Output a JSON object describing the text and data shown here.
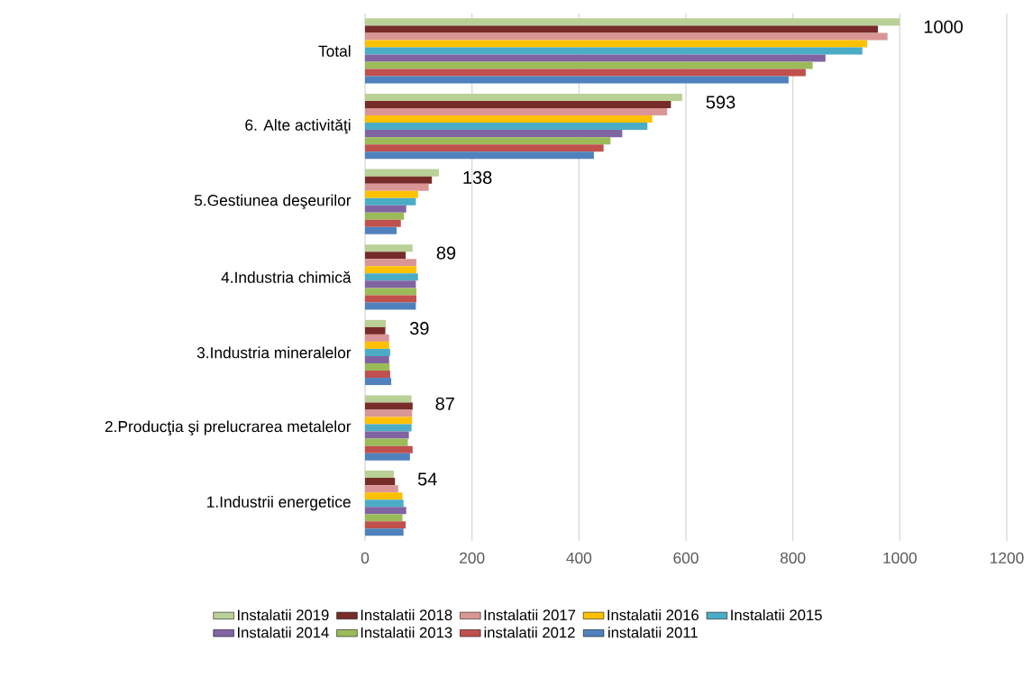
{
  "chart_data": {
    "type": "bar",
    "orientation": "horizontal",
    "categories": [
      "Total",
      "6. Alte activităţi",
      "5.Gestiunea deşeurilor",
      "4.Industria chimică",
      "3.Industria mineralelor",
      "2.Producţia şi prelucrarea metalelor",
      "1.Industrii energetice"
    ],
    "series": [
      {
        "name": "Instalatii 2019",
        "color": "#b9d096",
        "values": [
          1000,
          593,
          138,
          89,
          39,
          87,
          54
        ],
        "value_labels": [
          "1000",
          "593",
          "138",
          "89",
          "39",
          "87",
          "54"
        ]
      },
      {
        "name": "Instalatii 2018",
        "color": "#772c2a",
        "values": [
          959,
          572,
          125,
          76,
          38,
          89,
          56
        ]
      },
      {
        "name": "Instalatii 2017",
        "color": "#da9694",
        "values": [
          977,
          565,
          119,
          96,
          45,
          88,
          62
        ]
      },
      {
        "name": "Instalatii 2016",
        "color": "#ffc000",
        "values": [
          939,
          537,
          99,
          96,
          45,
          88,
          70
        ]
      },
      {
        "name": "Instalatii 2015",
        "color": "#4bacc6",
        "values": [
          930,
          528,
          95,
          99,
          47,
          87,
          72
        ]
      },
      {
        "name": "Instalatii 2014",
        "color": "#8064a2",
        "values": [
          861,
          481,
          77,
          95,
          45,
          82,
          77
        ]
      },
      {
        "name": "Instalatii 2013",
        "color": "#9bbb59",
        "values": [
          837,
          459,
          73,
          96,
          46,
          80,
          70
        ]
      },
      {
        "name": "instalatii 2012",
        "color": "#c0504d",
        "values": [
          824,
          446,
          67,
          96,
          47,
          89,
          76
        ]
      },
      {
        "name": "instalatii 2011",
        "color": "#4f81bd",
        "values": [
          792,
          428,
          59,
          95,
          49,
          84,
          72
        ]
      }
    ],
    "xlim": [
      0,
      1200
    ],
    "xticks": [
      0,
      200,
      400,
      600,
      800,
      1000,
      1200
    ],
    "grid": "x",
    "legend": "bottom"
  }
}
